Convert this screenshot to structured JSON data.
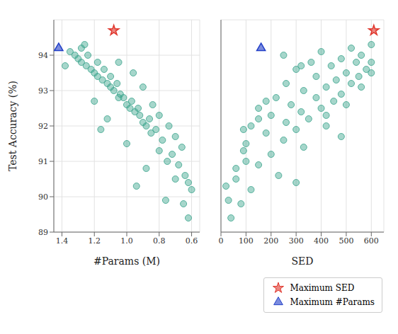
{
  "chart_data": {
    "type": "scatter",
    "x_label": "#Params (M)",
    "x2_label": "SED",
    "y_label": "Test Accuracy (%)",
    "xlim": [
      0.55,
      1.45
    ],
    "xticks": [
      0.6,
      0.8,
      {
        "value": 1,
        "label": "1.0"
      },
      1.2,
      1.4
    ],
    "x2lim": [
      0,
      650
    ],
    "x2ticks": [
      0,
      100,
      200,
      300,
      400,
      500,
      600
    ],
    "ylim": [
      89,
      95
    ],
    "yticks": [
      89,
      90,
      91,
      92,
      93,
      94
    ],
    "grid": true,
    "legend": "lower right",
    "series": [
      {
        "color": "#3aa38c",
        "marker": "circle",
        "params": [
          0.62,
          0.65,
          0.6,
          0.7,
          0.68,
          0.75,
          0.72,
          0.8,
          0.78,
          0.85,
          0.82,
          0.88,
          0.9,
          0.86,
          0.92,
          0.95,
          0.93,
          0.98,
          1.0,
          0.97,
          1.02,
          1.05,
          1.04,
          1.08,
          1.1,
          1.06,
          1.12,
          1.15,
          1.1,
          1.18,
          1.2,
          1.14,
          1.22,
          1.25,
          1.18,
          1.28,
          1.3,
          1.24,
          1.32,
          1.35,
          1.28,
          0.74,
          0.66,
          0.84,
          0.9,
          0.64,
          0.76,
          0.88,
          1.0,
          1.12,
          1.2,
          0.96,
          1.05,
          0.7,
          0.8,
          1.38,
          1.16,
          0.62,
          0.94,
          1.26
        ],
        "sed": [
          40,
          80,
          120,
          60,
          150,
          100,
          200,
          90,
          250,
          180,
          300,
          120,
          260,
          350,
          200,
          320,
          400,
          150,
          280,
          450,
          380,
          220,
          480,
          330,
          420,
          520,
          260,
          460,
          550,
          380,
          500,
          580,
          300,
          440,
          540,
          360,
          480,
          560,
          250,
          400,
          520,
          420,
          330,
          500,
          560,
          230,
          30,
          60,
          100,
          150,
          180,
          600,
          600,
          480,
          420,
          320,
          90,
          300,
          20,
          600
        ],
        "values": [
          89.4,
          89.8,
          90.2,
          90.5,
          90.9,
          91.0,
          91.2,
          91.3,
          91.6,
          91.8,
          91.9,
          92.0,
          92.1,
          92.2,
          92.3,
          92.4,
          92.5,
          92.5,
          92.6,
          92.7,
          92.8,
          92.8,
          92.9,
          93.0,
          93.1,
          93.2,
          93.2,
          93.3,
          93.4,
          93.4,
          93.5,
          93.6,
          93.6,
          93.7,
          93.8,
          93.8,
          93.9,
          94.0,
          94.0,
          94.1,
          94.2,
          92.0,
          91.4,
          92.6,
          93.1,
          90.6,
          89.9,
          90.8,
          91.5,
          92.2,
          92.7,
          93.5,
          93.8,
          91.7,
          92.3,
          93.7,
          91.9,
          90.4,
          90.3,
          94.3
        ]
      },
      {
        "name": "Maximum SED",
        "color": "#e0362c",
        "marker": "star",
        "params": [
          1.08
        ],
        "sed": [
          610
        ],
        "values": [
          94.7
        ]
      },
      {
        "name": "Maximum #Params",
        "color": "#2340c8",
        "marker": "triangle",
        "params": [
          1.42
        ],
        "sed": [
          160
        ],
        "values": [
          94.2
        ]
      }
    ]
  }
}
